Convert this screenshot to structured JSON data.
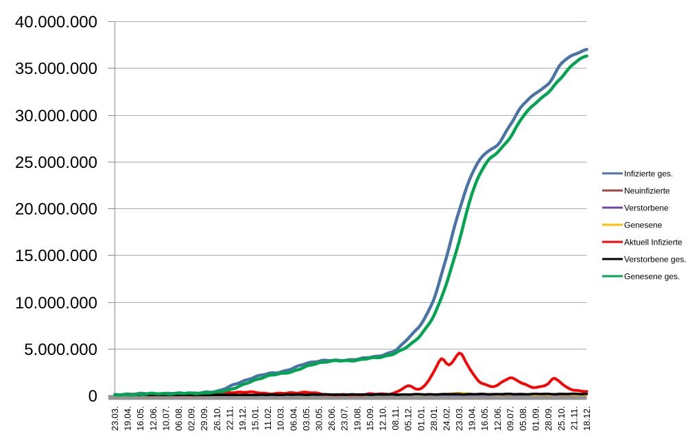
{
  "chart_data": {
    "type": "line",
    "title": "",
    "background": "#ffffff",
    "grid": true,
    "legend_position": "right",
    "axis_colors": {
      "gridline": "#adadad",
      "axis": "#8c8c8c",
      "baseline_bar": "#949494",
      "text": "#000000"
    },
    "y_axis": {
      "min": 0,
      "max": 40000000,
      "step": 5000000,
      "tick_labels": [
        "0",
        "5.000.000",
        "10.000.000",
        "15.000.000",
        "20.000.000",
        "25.000.000",
        "30.000.000",
        "35.000.000",
        "40.000.000"
      ]
    },
    "x_axis": {
      "tick_labels": [
        "23.03.",
        "19.04.",
        "16.05.",
        "12.06.",
        "10.07.",
        "06.08.",
        "02.09.",
        "29.09.",
        "26.10.",
        "22.11.",
        "19.12.",
        "15.01.",
        "11.02.",
        "10.03.",
        "06.04.",
        "03.05.",
        "30.05.",
        "26.06.",
        "23.07.",
        "19.08.",
        "15.09.",
        "12.10.",
        "08.11.",
        "05.12.",
        "01.01.",
        "28.01.",
        "24.02.",
        "23.03.",
        "19.04.",
        "16.05.",
        "12.06.",
        "09.07.",
        "05.08.",
        "01.09.",
        "28.09.",
        "25.10.",
        "21.11.",
        "18.12."
      ]
    },
    "series": [
      {
        "name": "Infizierte ges.",
        "color": "#4a74a8",
        "width": 4.5,
        "values": [
          30000,
          145000,
          172000,
          187000,
          200000,
          215000,
          246000,
          290000,
          450000,
          960000,
          1470000,
          2000000,
          2300000,
          2520000,
          2910000,
          3420000,
          3680000,
          3730000,
          3770000,
          3850000,
          4100000,
          4300000,
          4820000,
          6150000,
          7600000,
          10300000,
          14800000,
          19800000,
          23700000,
          25800000,
          26800000,
          28900000,
          31100000,
          32300000,
          33300000,
          35500000,
          36400000,
          37000000
        ]
      },
      {
        "name": "Neuinfizierte",
        "color": "#a6413d",
        "width": 2.5,
        "values": [
          4000,
          2500,
          700,
          400,
          400,
          900,
          1400,
          2300,
          12000,
          19000,
          23000,
          15000,
          8000,
          9000,
          18000,
          15000,
          5000,
          1000,
          1500,
          7000,
          8000,
          10000,
          33000,
          55000,
          40000,
          110000,
          180000,
          250000,
          130000,
          60000,
          80000,
          110000,
          65000,
          45000,
          70000,
          95000,
          40000,
          25000
        ]
      },
      {
        "name": "Verstorbene",
        "color": "#7142a8",
        "width": 2.5,
        "values": [
          200,
          400,
          300,
          150,
          100,
          100,
          150,
          250,
          400,
          800,
          1000,
          900,
          700,
          500,
          350,
          250,
          200,
          150,
          100,
          100,
          150,
          200,
          300,
          500,
          400,
          300,
          350,
          300,
          250,
          200,
          150,
          200,
          150,
          150,
          150,
          200,
          180,
          150
        ]
      },
      {
        "name": "Genesene",
        "color": "#ffc000",
        "width": 2.5,
        "points": [
          [
            0,
            2000
          ],
          [
            1,
            3000
          ],
          [
            2,
            1500
          ],
          [
            3,
            500
          ],
          [
            4,
            400
          ],
          [
            5,
            700
          ],
          [
            6,
            1100
          ],
          [
            7,
            1800
          ],
          [
            8,
            7000
          ],
          [
            9,
            15000
          ],
          [
            10,
            20000
          ],
          [
            11,
            18000
          ],
          [
            12,
            10000
          ],
          [
            13,
            8000
          ],
          [
            14,
            15000
          ],
          [
            15,
            16000
          ],
          [
            16,
            8000
          ],
          [
            17,
            2000
          ],
          [
            18,
            1200
          ],
          [
            19,
            5000
          ],
          [
            20,
            7000
          ],
          [
            21,
            9000
          ],
          [
            22,
            22000
          ],
          [
            23,
            45000
          ],
          [
            24,
            42000
          ],
          [
            25,
            80000
          ],
          [
            26,
            150000
          ],
          [
            27,
            210000
          ],
          [
            27.5,
            240000
          ],
          [
            28,
            170000
          ],
          [
            29,
            90000
          ],
          [
            30,
            75000
          ],
          [
            31,
            100000
          ],
          [
            32,
            90000
          ],
          [
            33,
            55000
          ],
          [
            34,
            60000
          ],
          [
            35,
            90000
          ],
          [
            36,
            60000
          ],
          [
            37,
            30000
          ]
        ]
      },
      {
        "name": "Aktuell Infizierte",
        "color": "#fe0000",
        "width": 4,
        "points": [
          [
            0,
            30000
          ],
          [
            1,
            65000
          ],
          [
            2,
            30000
          ],
          [
            3,
            13000
          ],
          [
            4,
            12000
          ],
          [
            5,
            14000
          ],
          [
            6,
            25000
          ],
          [
            7,
            31000
          ],
          [
            8,
            100000
          ],
          [
            9,
            310000
          ],
          [
            10,
            360000
          ],
          [
            11,
            310000
          ],
          [
            12,
            210000
          ],
          [
            13,
            200000
          ],
          [
            14,
            280000
          ],
          [
            15,
            330000
          ],
          [
            16,
            180000
          ],
          [
            17,
            70000
          ],
          [
            18,
            45000
          ],
          [
            19,
            70000
          ],
          [
            20,
            140000
          ],
          [
            21,
            140000
          ],
          [
            22,
            300000
          ],
          [
            23,
            980000
          ],
          [
            24,
            730000
          ],
          [
            25,
            2450000
          ],
          [
            25.6,
            3950000
          ],
          [
            26.2,
            3250000
          ],
          [
            27,
            4500000
          ],
          [
            27.5,
            3600000
          ],
          [
            28,
            2450000
          ],
          [
            28.5,
            1600000
          ],
          [
            29,
            1200000
          ],
          [
            29.5,
            950000
          ],
          [
            30,
            1050000
          ],
          [
            30.5,
            1550000
          ],
          [
            31,
            1900000
          ],
          [
            31.5,
            1650000
          ],
          [
            32,
            1250000
          ],
          [
            32.5,
            950000
          ],
          [
            33,
            850000
          ],
          [
            33.5,
            1000000
          ],
          [
            34,
            1300000
          ],
          [
            34.4,
            1780000
          ],
          [
            34.8,
            1550000
          ],
          [
            35.3,
            950000
          ],
          [
            36,
            600000
          ],
          [
            36.5,
            460000
          ],
          [
            37,
            420000
          ]
        ]
      },
      {
        "name": "Verstorbene ges.",
        "color": "#000000",
        "width": 3.5,
        "values": [
          1000,
          5000,
          8000,
          8800,
          9100,
          9300,
          9400,
          9600,
          10000,
          14000,
          26000,
          46000,
          62000,
          72000,
          77000,
          83000,
          87000,
          90000,
          91000,
          92000,
          93000,
          94000,
          97000,
          103000,
          112000,
          117000,
          121000,
          126000,
          133000,
          137000,
          139000,
          141000,
          144000,
          147000,
          149000,
          152000,
          156000,
          160000
        ]
      },
      {
        "name": "Genesene ges.",
        "color": "#00a550",
        "width": 4.5,
        "values": [
          5000,
          50000,
          130000,
          173000,
          187000,
          201000,
          222000,
          258000,
          340000,
          630000,
          1090000,
          1650000,
          2080000,
          2310000,
          2600000,
          3060000,
          3490000,
          3660000,
          3710000,
          3770000,
          3960000,
          4160000,
          4500000,
          5300000,
          6500000,
          8500000,
          12000000,
          16500000,
          21600000,
          24600000,
          26000000,
          27600000,
          29800000,
          31300000,
          32400000,
          34000000,
          35500000,
          36300000
        ]
      }
    ]
  }
}
